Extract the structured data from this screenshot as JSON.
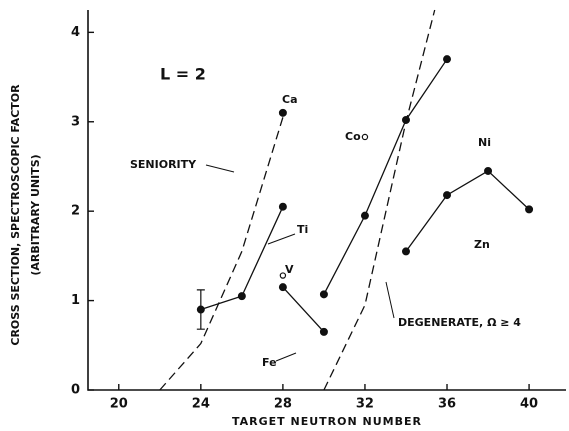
{
  "chart_data": {
    "type": "line",
    "annotation": "L = 2",
    "xlabel": "TARGET NEUTRON NUMBER",
    "ylabel": [
      "CROSS SECTION, SPECTROSCOPIC FACTOR",
      "(ARBITRARY UNITS)"
    ],
    "xlim": [
      18.5,
      41.8
    ],
    "ylim": [
      0,
      4.25
    ],
    "xticks": [
      20,
      24,
      28,
      32,
      36,
      40
    ],
    "yticks": [
      0,
      1,
      2,
      3,
      4
    ],
    "color": "#111111",
    "series": [
      {
        "name": "Ca",
        "x": [
          28
        ],
        "values": [
          3.1
        ],
        "marker": "filled",
        "dashed": false
      },
      {
        "name": "Ti",
        "x": [
          24,
          26,
          28
        ],
        "values": [
          0.9,
          1.05,
          2.05
        ],
        "errors": [
          0.22,
          null,
          null
        ],
        "marker": "filled",
        "dashed": false
      },
      {
        "name": "V",
        "x": [
          28
        ],
        "values": [
          1.28
        ],
        "marker": "open",
        "dashed": false
      },
      {
        "name": "Fe",
        "x": [
          28,
          30
        ],
        "values": [
          1.15,
          0.65
        ],
        "marker": "filled",
        "dashed": false
      },
      {
        "name": "Co",
        "x": [
          32
        ],
        "values": [
          2.83
        ],
        "marker": "open",
        "dashed": false
      },
      {
        "name": "Ni",
        "x": [
          30,
          32,
          34,
          36
        ],
        "values": [
          1.07,
          1.95,
          3.02,
          3.7
        ],
        "marker": "filled",
        "dashed": false
      },
      {
        "name": "Zn",
        "x": [
          34,
          36,
          38,
          40
        ],
        "values": [
          1.55,
          2.18,
          2.45,
          2.02
        ],
        "marker": "filled",
        "dashed": false
      },
      {
        "name": "SENIORITY",
        "x": [
          22,
          24,
          26,
          28
        ],
        "values": [
          0,
          0.52,
          1.55,
          3.05
        ],
        "marker": "none",
        "dashed": true
      },
      {
        "name": "DEGENERATE, Ω ≥ 4",
        "x": [
          30,
          32,
          34,
          35.4
        ],
        "values": [
          0,
          0.95,
          3.0,
          4.25
        ],
        "marker": "none",
        "dashed": true
      }
    ]
  }
}
